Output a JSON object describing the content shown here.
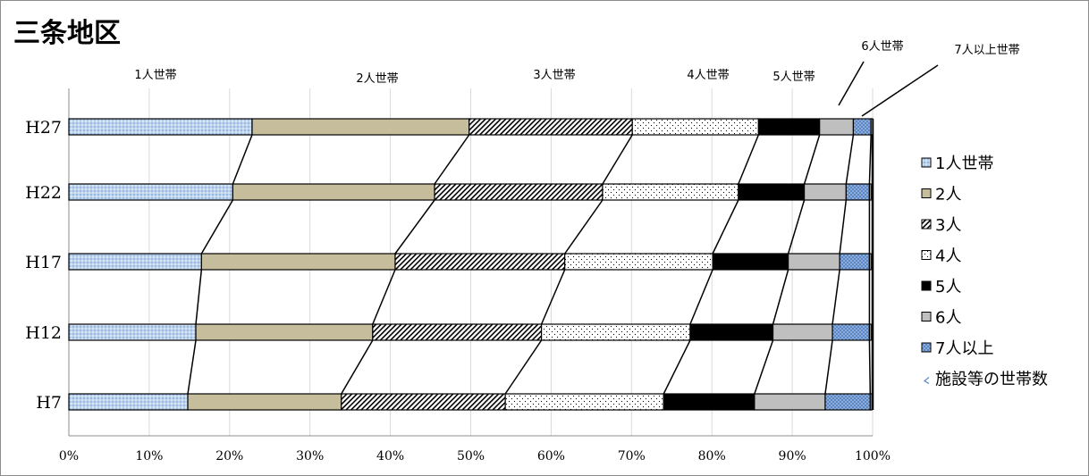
{
  "chart_data": {
    "type": "bar",
    "orientation": "horizontal",
    "stacked": "percent",
    "title": "三条地区",
    "categories": [
      "H27",
      "H22",
      "H17",
      "H12",
      "H7"
    ],
    "series": [
      {
        "name": "1人世帯",
        "values": [
          22.8,
          20.4,
          16.5,
          15.8,
          14.8
        ]
      },
      {
        "name": "2人",
        "values": [
          27.0,
          25.1,
          24.1,
          22.0,
          19.1
        ]
      },
      {
        "name": "3人",
        "values": [
          20.3,
          20.9,
          21.1,
          21.0,
          20.4
        ]
      },
      {
        "name": "4人",
        "values": [
          15.7,
          16.9,
          18.4,
          18.5,
          19.7
        ]
      },
      {
        "name": "5人",
        "values": [
          7.6,
          8.2,
          9.4,
          10.3,
          11.3
        ]
      },
      {
        "name": "6人",
        "values": [
          4.2,
          5.2,
          6.4,
          7.4,
          8.8
        ]
      },
      {
        "name": "7人以上",
        "values": [
          2.2,
          2.9,
          3.7,
          4.6,
          5.6
        ]
      },
      {
        "name": "施設等の世帯数",
        "values": [
          0.2,
          0.2,
          0.2,
          0.2,
          0.2
        ]
      }
    ],
    "xlim": [
      0,
      100
    ],
    "xticks": [
      "0%",
      "10%",
      "20%",
      "30%",
      "40%",
      "50%",
      "60%",
      "70%",
      "80%",
      "90%",
      "100%"
    ],
    "grid": true,
    "legend_position": "right",
    "annotations": [
      "1人世帯",
      "2人世帯",
      "3人世帯",
      "4人世帯",
      "5人世帯",
      "6人世帯",
      "7人以上世帯"
    ]
  },
  "colors": {
    "series_fills": [
      "#b8d0ec",
      "#c6bd9d",
      "#ffffff",
      "#ffffff",
      "#000000",
      "#bfbfbf",
      "#5b86c5",
      "#dce6f2"
    ],
    "grid": "#d9d9d9",
    "axis": "#8c8c8c",
    "outline": "#000000"
  }
}
